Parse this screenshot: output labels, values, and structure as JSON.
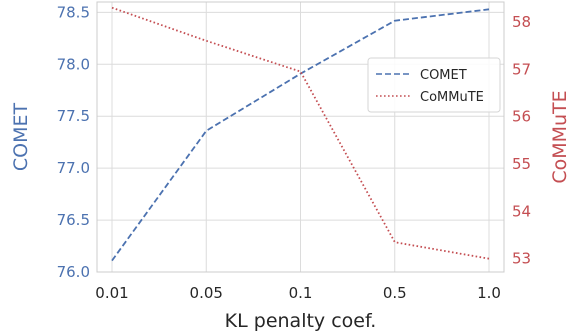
{
  "chart_data": {
    "type": "line",
    "title": "",
    "xlabel": "KL penalty coef.",
    "categories": [
      "0.01",
      "0.05",
      "0.1",
      "0.5",
      "1.0"
    ],
    "ylabel_left": "COMET",
    "ylabel_right": "CoMMuTE",
    "ylim_left": [
      76.0,
      78.6
    ],
    "ylim_right": [
      52.72,
      58.42
    ],
    "yticks_left": [
      76.0,
      76.5,
      77.0,
      77.5,
      78.0,
      78.5
    ],
    "yticks_left_labels": [
      "76.0",
      "76.5",
      "77.0",
      "77.5",
      "78.0",
      "78.5"
    ],
    "yticks_right": [
      53,
      54,
      55,
      56,
      57,
      58
    ],
    "yticks_right_labels": [
      "53",
      "54",
      "55",
      "56",
      "57",
      "58"
    ],
    "grid": true,
    "legend_position": "right",
    "series": [
      {
        "name": "COMET",
        "axis": "left",
        "style": "dashed",
        "color": "#4c72b0",
        "values": [
          76.11,
          77.36,
          77.91,
          78.42,
          78.53
        ]
      },
      {
        "name": "CoMMuTE",
        "axis": "right",
        "style": "dotted",
        "color": "#c44e52",
        "values": [
          58.3,
          57.6,
          56.95,
          53.35,
          53.0
        ]
      }
    ]
  },
  "colors": {
    "left_axis": "#4c72b0",
    "right_axis": "#c44e52",
    "grid": "#dcdcdc",
    "text": "#262626"
  }
}
